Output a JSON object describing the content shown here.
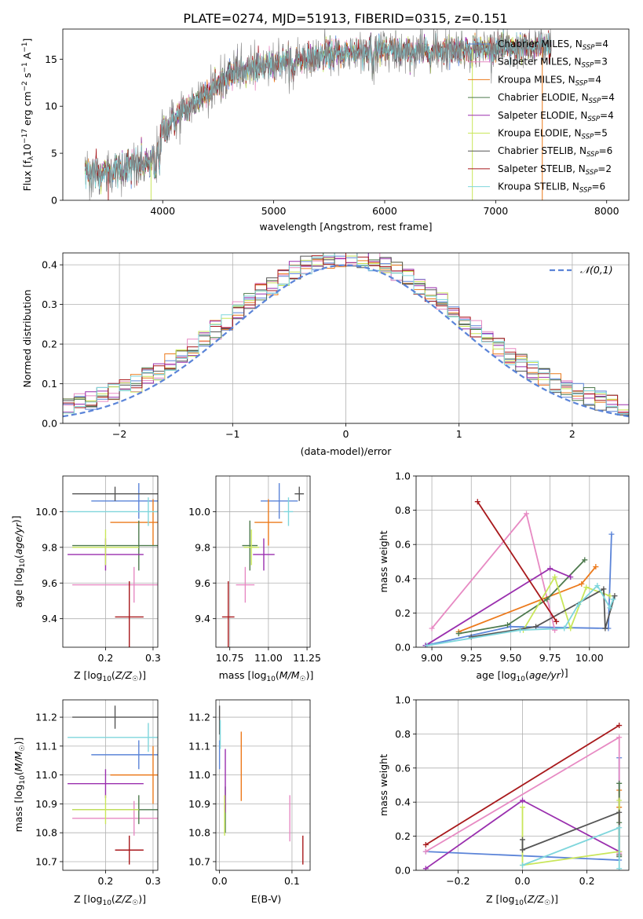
{
  "title": "PLATE=0274, MJD=51913, FIBERID=0315, z=0.151",
  "colors": {
    "chabrier_miles": "#5b84d8",
    "salpeter_miles": "#e78ac3",
    "kroupa_miles": "#ec7a1c",
    "chabrier_elodie": "#4d7a4d",
    "salpeter_elodie": "#9a2fae",
    "kroupa_elodie": "#c9e65a",
    "chabrier_stelib": "#555555",
    "salpeter_stelib": "#a8191c",
    "kroupa_stelib": "#7fd6dc",
    "normal": "#5b84d8"
  },
  "chart_data": [
    {
      "type": "line",
      "id": "spectrum",
      "xlabel": "wavelength [Angstrom, rest frame]",
      "ylabel": "Flux [f_λ 10^-17 erg cm^-2 s^-1 A^-1]",
      "xlim": [
        3100,
        8200
      ],
      "ylim": [
        0,
        18.2
      ],
      "xticks": [
        4000,
        5000,
        6000,
        7000,
        8000
      ],
      "yticks": [
        0,
        5,
        10,
        15
      ],
      "legend_position": "top-right",
      "legend": [
        {
          "label": "Chabrier MILES, N_SSP=4",
          "color_key": "chabrier_miles"
        },
        {
          "label": "Salpeter MILES, N_SSP=3",
          "color_key": "salpeter_miles"
        },
        {
          "label": "Kroupa MILES, N_SSP=4",
          "color_key": "kroupa_miles"
        },
        {
          "label": "Chabrier ELODIE, N_SSP=4",
          "color_key": "chabrier_elodie"
        },
        {
          "label": "Salpeter ELODIE, N_SSP=4",
          "color_key": "salpeter_elodie"
        },
        {
          "label": "Kroupa ELODIE, N_SSP=5",
          "color_key": "kroupa_elodie"
        },
        {
          "label": "Chabrier STELIB, N_SSP=6",
          "color_key": "chabrier_stelib"
        },
        {
          "label": "Salpeter STELIB, N_SSP=2",
          "color_key": "salpeter_stelib"
        },
        {
          "label": "Kroupa STELIB, N_SSP=6",
          "color_key": "kroupa_stelib"
        }
      ],
      "continuum": {
        "x": [
          3300,
          3500,
          3700,
          3900,
          4000,
          4100,
          4200,
          4400,
          4600,
          4800,
          5000,
          5200,
          5400,
          5600,
          5800,
          6000,
          6200,
          6400,
          6600,
          6800,
          7000,
          7200,
          7400
        ],
        "y": [
          3.0,
          3.0,
          3.5,
          4.0,
          7.2,
          8.6,
          9.5,
          11.5,
          13.4,
          14.0,
          14.6,
          15.0,
          15.2,
          15.6,
          15.9,
          15.9,
          15.7,
          15.9,
          16.0,
          16.1,
          16.1,
          16.2,
          16.3
        ]
      }
    },
    {
      "type": "line",
      "id": "residuals",
      "xlabel": "(data-model)/error",
      "ylabel": "Normed distribution",
      "xlim": [
        -2.5,
        2.5
      ],
      "ylim": [
        0,
        0.43
      ],
      "xticks": [
        -2,
        -1,
        0,
        1,
        2
      ],
      "yticks": [
        0.0,
        0.1,
        0.2,
        0.3,
        0.4
      ],
      "legend_position": "top-right",
      "legend": [
        {
          "label": "𝒩(0,1)",
          "color_key": "normal",
          "style": "dashed"
        }
      ]
    },
    {
      "type": "scatter",
      "id": "age_vs_Z",
      "xlabel": "Z [log10(Z/Z☉)]",
      "ylabel": "age  [log10(age/yr)]",
      "xlim": [
        0.11,
        0.31
      ],
      "ylim": [
        9.24,
        10.2
      ],
      "xticks": [
        0.2,
        0.3
      ],
      "yticks": [
        9.4,
        9.6,
        9.8,
        10.0
      ],
      "points": [
        {
          "c": "chabrier_miles",
          "x": 0.27,
          "xerr": 0.1,
          "y": 10.06,
          "yerr": 0.1
        },
        {
          "c": "salpeter_miles",
          "x": 0.26,
          "xerr": 0.13,
          "y": 9.59,
          "yerr": 0.1
        },
        {
          "c": "kroupa_miles",
          "x": 0.3,
          "xerr": 0.09,
          "y": 9.94,
          "yerr": 0.13
        },
        {
          "c": "chabrier_elodie",
          "x": 0.27,
          "xerr": 0.14,
          "y": 9.81,
          "yerr": 0.14
        },
        {
          "c": "salpeter_elodie",
          "x": 0.2,
          "xerr": 0.08,
          "y": 9.76,
          "yerr": 0.09
        },
        {
          "c": "kroupa_elodie",
          "x": 0.2,
          "xerr": 0.07,
          "y": 9.8,
          "yerr": 0.1
        },
        {
          "c": "chabrier_stelib",
          "x": 0.22,
          "xerr": 0.09,
          "y": 10.1,
          "yerr": 0.04
        },
        {
          "c": "salpeter_stelib",
          "x": 0.25,
          "xerr": 0.03,
          "y": 9.41,
          "yerr": 0.2
        },
        {
          "c": "kroupa_stelib",
          "x": 0.29,
          "xerr": 0.17,
          "y": 10.0,
          "yerr": 0.08
        }
      ]
    },
    {
      "type": "scatter",
      "id": "age_vs_mass",
      "xlabel": "mass [log10(M/M☉)]",
      "ylabel": "",
      "xlim": [
        10.66,
        11.27
      ],
      "ylim": [
        9.24,
        10.2
      ],
      "xticks": [
        10.75,
        11.0,
        11.25
      ],
      "yticks": [
        9.4,
        9.6,
        9.8,
        10.0
      ],
      "points": [
        {
          "c": "chabrier_miles",
          "x": 11.07,
          "xerr": 0.12,
          "y": 10.06,
          "yerr": 0.1
        },
        {
          "c": "salpeter_miles",
          "x": 10.85,
          "xerr": 0.06,
          "y": 9.59,
          "yerr": 0.1
        },
        {
          "c": "kroupa_miles",
          "x": 11.0,
          "xerr": 0.09,
          "y": 9.94,
          "yerr": 0.13
        },
        {
          "c": "chabrier_elodie",
          "x": 10.88,
          "xerr": 0.05,
          "y": 9.81,
          "yerr": 0.14
        },
        {
          "c": "salpeter_elodie",
          "x": 10.97,
          "xerr": 0.07,
          "y": 9.76,
          "yerr": 0.09
        },
        {
          "c": "kroupa_elodie",
          "x": 10.89,
          "xerr": 0.05,
          "y": 9.8,
          "yerr": 0.1
        },
        {
          "c": "chabrier_stelib",
          "x": 11.2,
          "xerr": 0.03,
          "y": 10.1,
          "yerr": 0.04
        },
        {
          "c": "salpeter_stelib",
          "x": 10.74,
          "xerr": 0.04,
          "y": 9.41,
          "yerr": 0.2
        },
        {
          "c": "kroupa_stelib",
          "x": 11.13,
          "xerr": 0.03,
          "y": 10.0,
          "yerr": 0.08
        }
      ]
    },
    {
      "type": "line",
      "id": "weight_vs_age",
      "xlabel": "age  [log10(age/yr)]",
      "ylabel": "mass weight",
      "xlim": [
        8.9,
        10.25
      ],
      "ylim": [
        0,
        1.0
      ],
      "xticks": [
        9.0,
        9.25,
        9.5,
        9.75,
        10.0
      ],
      "yticks": [
        0.0,
        0.2,
        0.4,
        0.6,
        0.8,
        1.0
      ],
      "series": [
        {
          "c": "chabrier_miles",
          "x": [
            8.96,
            9.5,
            10.12,
            10.14
          ],
          "y": [
            0.01,
            0.12,
            0.11,
            0.66
          ]
        },
        {
          "c": "salpeter_miles",
          "x": [
            9.0,
            9.6,
            9.78
          ],
          "y": [
            0.11,
            0.78,
            0.1
          ]
        },
        {
          "c": "kroupa_miles",
          "x": [
            9.17,
            9.95,
            10.04
          ],
          "y": [
            0.09,
            0.37,
            0.47
          ]
        },
        {
          "c": "chabrier_elodie",
          "x": [
            9.17,
            9.48,
            9.73,
            9.97
          ],
          "y": [
            0.08,
            0.13,
            0.28,
            0.51
          ]
        },
        {
          "c": "salpeter_elodie",
          "x": [
            8.96,
            9.75,
            9.88
          ],
          "y": [
            0.01,
            0.46,
            0.41
          ]
        },
        {
          "c": "kroupa_elodie",
          "x": [
            9.58,
            9.78,
            9.88,
            9.98,
            10.13
          ],
          "y": [
            0.1,
            0.41,
            0.11,
            0.35,
            0.3
          ]
        },
        {
          "c": "chabrier_stelib",
          "x": [
            9.25,
            9.66,
            10.09,
            10.1,
            10.16
          ],
          "y": [
            0.06,
            0.12,
            0.34,
            0.11,
            0.3
          ]
        },
        {
          "c": "salpeter_stelib",
          "x": [
            9.29,
            9.79
          ],
          "y": [
            0.85,
            0.15
          ]
        },
        {
          "c": "kroupa_stelib",
          "x": [
            8.97,
            9.56,
            9.84,
            9.93,
            10.05,
            10.13,
            10.15
          ],
          "y": [
            0.01,
            0.1,
            0.11,
            0.25,
            0.36,
            0.23,
            0.28
          ]
        }
      ]
    },
    {
      "type": "scatter",
      "id": "mass_vs_Z",
      "xlabel": "Z [log10(Z/Z☉)]",
      "ylabel": "mass [log10(M/M☉)]",
      "xlim": [
        0.11,
        0.31
      ],
      "ylim": [
        10.67,
        11.26
      ],
      "xticks": [
        0.2,
        0.3
      ],
      "yticks": [
        10.7,
        10.8,
        10.9,
        11.0,
        11.1,
        11.2
      ],
      "points": [
        {
          "c": "chabrier_miles",
          "x": 0.27,
          "xerr": 0.1,
          "y": 11.07,
          "yerr": 0.05
        },
        {
          "c": "salpeter_miles",
          "x": 0.26,
          "xerr": 0.13,
          "y": 10.85,
          "yerr": 0.06
        },
        {
          "c": "kroupa_miles",
          "x": 0.3,
          "xerr": 0.09,
          "y": 11.0,
          "yerr": 0.1
        },
        {
          "c": "chabrier_elodie",
          "x": 0.27,
          "xerr": 0.14,
          "y": 10.88,
          "yerr": 0.05
        },
        {
          "c": "salpeter_elodie",
          "x": 0.2,
          "xerr": 0.08,
          "y": 10.97,
          "yerr": 0.05
        },
        {
          "c": "kroupa_elodie",
          "x": 0.2,
          "xerr": 0.07,
          "y": 10.88,
          "yerr": 0.05
        },
        {
          "c": "chabrier_stelib",
          "x": 0.22,
          "xerr": 0.09,
          "y": 11.2,
          "yerr": 0.04
        },
        {
          "c": "salpeter_stelib",
          "x": 0.25,
          "xerr": 0.03,
          "y": 10.74,
          "yerr": 0.05
        },
        {
          "c": "kroupa_stelib",
          "x": 0.29,
          "xerr": 0.17,
          "y": 11.13,
          "yerr": 0.05
        }
      ]
    },
    {
      "type": "scatter",
      "id": "mass_vs_ebv",
      "xlabel": "E(B-V)",
      "ylabel": "",
      "xlim": [
        -0.005,
        0.125
      ],
      "ylim": [
        10.67,
        11.26
      ],
      "xticks": [
        0.0,
        0.1
      ],
      "yticks": [
        10.7,
        10.8,
        10.9,
        11.0,
        11.1,
        11.2
      ],
      "points": [
        {
          "c": "chabrier_miles",
          "x": 0.0,
          "xerr": 0.0,
          "y": 11.07,
          "yerr": 0.05
        },
        {
          "c": "salpeter_miles",
          "x": 0.097,
          "xerr": 0.0,
          "y": 10.85,
          "yerr": 0.08
        },
        {
          "c": "kroupa_miles",
          "x": 0.03,
          "xerr": 0.0,
          "y": 11.03,
          "yerr": 0.12
        },
        {
          "c": "chabrier_elodie",
          "x": 0.008,
          "xerr": 0.0,
          "y": 10.88,
          "yerr": 0.08
        },
        {
          "c": "salpeter_elodie",
          "x": 0.008,
          "xerr": 0.0,
          "y": 10.98,
          "yerr": 0.11
        },
        {
          "c": "kroupa_elodie",
          "x": 0.007,
          "xerr": 0.0,
          "y": 10.86,
          "yerr": 0.07
        },
        {
          "c": "chabrier_stelib",
          "x": 0.0,
          "xerr": 0.0,
          "y": 11.19,
          "yerr": 0.05
        },
        {
          "c": "salpeter_stelib",
          "x": 0.115,
          "xerr": 0.0,
          "y": 10.74,
          "yerr": 0.05
        },
        {
          "c": "kroupa_stelib",
          "x": 0.001,
          "xerr": 0.0,
          "y": 11.14,
          "yerr": 0.05
        }
      ]
    },
    {
      "type": "line",
      "id": "weight_vs_Z",
      "xlabel": "Z [log10(Z/Z☉)]",
      "ylabel": "mass weight",
      "xlim": [
        -0.33,
        0.33
      ],
      "ylim": [
        0,
        1.0
      ],
      "xticks": [
        -0.2,
        0.0,
        0.2
      ],
      "yticks": [
        0.0,
        0.2,
        0.4,
        0.6,
        0.8,
        1.0
      ],
      "series": [
        {
          "c": "chabrier_miles",
          "x": [
            -0.3,
            0.3,
            0.3
          ],
          "y": [
            0.11,
            0.06,
            0.66
          ]
        },
        {
          "c": "salpeter_miles",
          "x": [
            -0.3,
            0.3,
            0.3
          ],
          "y": [
            0.11,
            0.78,
            0.1
          ]
        },
        {
          "c": "kroupa_miles",
          "x": [
            0.3,
            0.3,
            0.3
          ],
          "y": [
            0.09,
            0.37,
            0.47
          ]
        },
        {
          "c": "chabrier_elodie",
          "x": [
            0.3,
            0.3,
            0.3
          ],
          "y": [
            0.08,
            0.28,
            0.51
          ]
        },
        {
          "c": "salpeter_elodie",
          "x": [
            -0.3,
            0.0,
            0.3
          ],
          "y": [
            0.01,
            0.41,
            0.11
          ]
        },
        {
          "c": "kroupa_elodie",
          "x": [
            0.0,
            0.0,
            0.3,
            0.3
          ],
          "y": [
            0.37,
            0.03,
            0.11,
            0.41
          ]
        },
        {
          "c": "chabrier_stelib",
          "x": [
            0.0,
            0.0,
            0.3,
            0.3
          ],
          "y": [
            0.18,
            0.12,
            0.34,
            0.09
          ]
        },
        {
          "c": "salpeter_stelib",
          "x": [
            -0.3,
            0.3
          ],
          "y": [
            0.15,
            0.85
          ]
        },
        {
          "c": "kroupa_stelib",
          "x": [
            0.0,
            0.3,
            0.3
          ],
          "y": [
            0.03,
            0.25,
            0.01
          ]
        }
      ]
    }
  ]
}
